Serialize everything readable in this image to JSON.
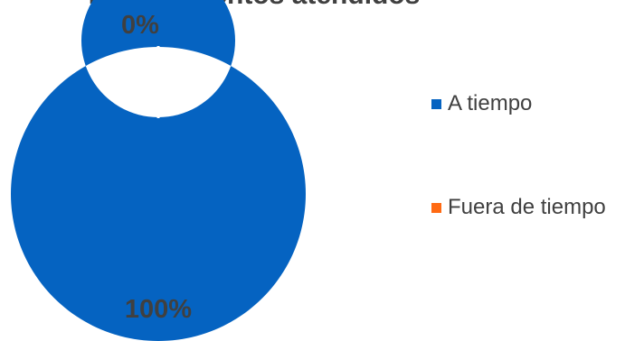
{
  "chart_data": {
    "type": "pie",
    "donut": true,
    "title": "requerimientos atendidos",
    "categories": [
      "A tiempo",
      "Fuera de tiempo"
    ],
    "values": [
      100,
      0
    ],
    "labels": [
      "100%",
      "0%"
    ],
    "colors": [
      "#0563C1",
      "#FF6A13"
    ],
    "legend_position": "right"
  }
}
